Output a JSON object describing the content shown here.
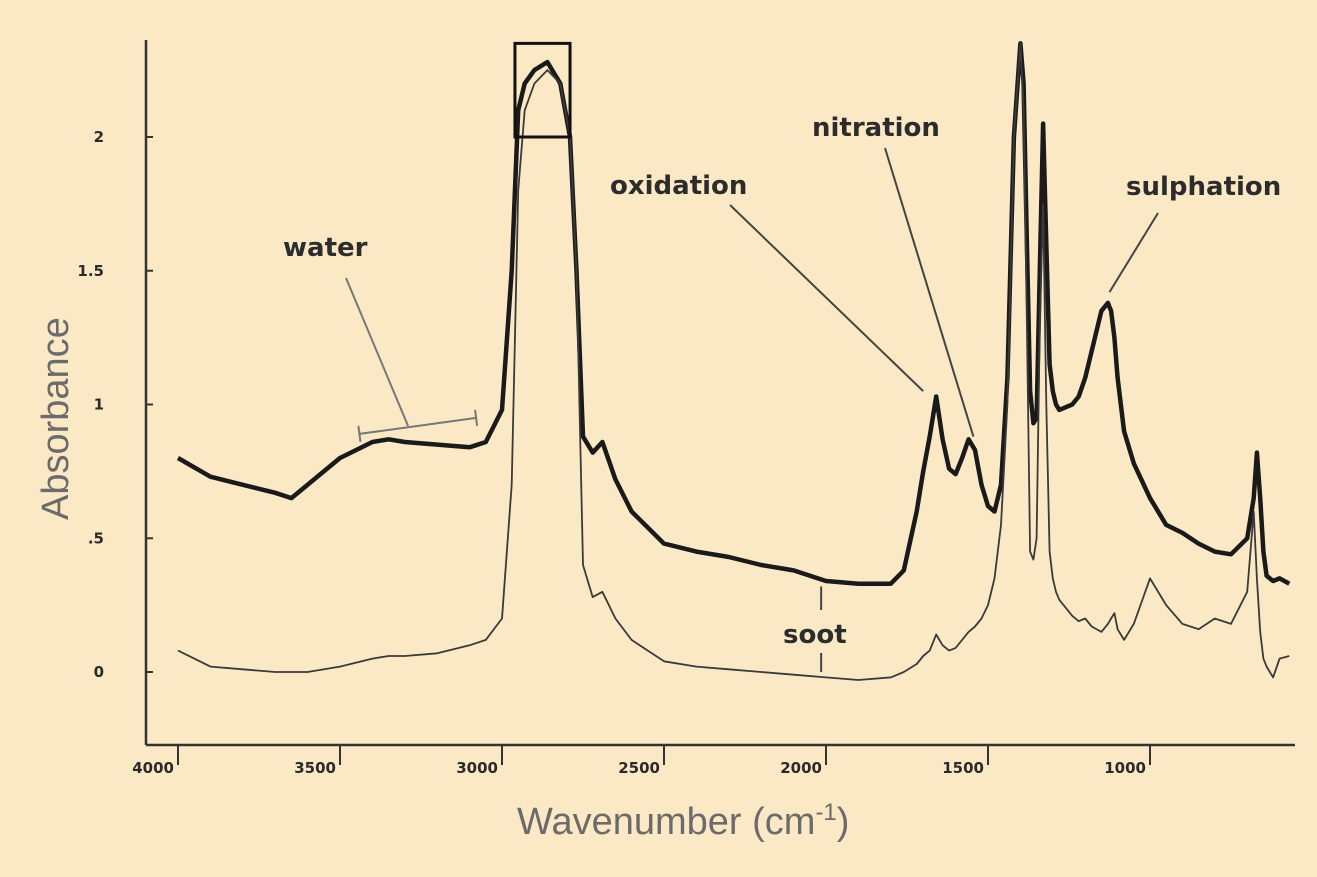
{
  "chart_data": {
    "type": "line",
    "title": "",
    "xlabel": "Wavenumber (cm",
    "xlabel_sup": "-1",
    "xlabel_close": ")",
    "ylabel": "Absorbance",
    "xlim": [
      4000,
      570
    ],
    "ylim": [
      -0.27,
      2.35
    ],
    "x_reversed": true,
    "grid": false,
    "x_ticks": [
      {
        "value": 4000,
        "label": "4000"
      },
      {
        "value": 3500,
        "label": "3500"
      },
      {
        "value": 3000,
        "label": "3000"
      },
      {
        "value": 2500,
        "label": "2500"
      },
      {
        "value": 2000,
        "label": "2000"
      },
      {
        "value": 1500,
        "label": "1500"
      },
      {
        "value": 1000,
        "label": "1000"
      }
    ],
    "y_ticks": [
      {
        "value": 0,
        "label": "0"
      },
      {
        "value": 0.5,
        "label": ".5"
      },
      {
        "value": 1,
        "label": "1"
      },
      {
        "value": 1.5,
        "label": "1.5"
      },
      {
        "value": 2,
        "label": "2"
      }
    ],
    "series": [
      {
        "style": "thick",
        "x": [
          4000,
          3900,
          3800,
          3700,
          3650,
          3600,
          3500,
          3400,
          3350,
          3300,
          3200,
          3100,
          3050,
          3000,
          2970,
          2950,
          2930,
          2900,
          2860,
          2820,
          2790,
          2770,
          2750,
          2720,
          2690,
          2650,
          2600,
          2500,
          2400,
          2300,
          2200,
          2100,
          2000,
          1900,
          1800,
          1760,
          1720,
          1700,
          1680,
          1660,
          1640,
          1620,
          1600,
          1580,
          1560,
          1540,
          1520,
          1500,
          1480,
          1460,
          1440,
          1420,
          1400,
          1390,
          1380,
          1370,
          1360,
          1350,
          1340,
          1330,
          1320,
          1310,
          1300,
          1290,
          1280,
          1260,
          1240,
          1220,
          1200,
          1180,
          1150,
          1130,
          1120,
          1110,
          1100,
          1080,
          1050,
          1000,
          950,
          900,
          850,
          800,
          750,
          700,
          680,
          670,
          660,
          650,
          640,
          620,
          600,
          570
        ],
        "y": [
          0.8,
          0.73,
          0.7,
          0.67,
          0.65,
          0.7,
          0.8,
          0.86,
          0.87,
          0.86,
          0.85,
          0.84,
          0.86,
          0.98,
          1.5,
          2.1,
          2.2,
          2.25,
          2.28,
          2.2,
          2.0,
          1.5,
          0.88,
          0.82,
          0.86,
          0.72,
          0.6,
          0.48,
          0.45,
          0.43,
          0.4,
          0.38,
          0.34,
          0.33,
          0.33,
          0.38,
          0.6,
          0.75,
          0.88,
          1.03,
          0.87,
          0.76,
          0.74,
          0.8,
          0.87,
          0.83,
          0.7,
          0.62,
          0.6,
          0.7,
          1.1,
          2.0,
          2.35,
          2.2,
          1.6,
          1.05,
          0.93,
          0.95,
          1.5,
          2.05,
          1.6,
          1.15,
          1.05,
          1.0,
          0.98,
          0.99,
          1.0,
          1.03,
          1.1,
          1.2,
          1.35,
          1.38,
          1.35,
          1.25,
          1.1,
          0.9,
          0.78,
          0.65,
          0.55,
          0.52,
          0.48,
          0.45,
          0.44,
          0.5,
          0.65,
          0.82,
          0.65,
          0.45,
          0.36,
          0.34,
          0.35,
          0.33
        ]
      },
      {
        "style": "thin",
        "x": [
          4000,
          3950,
          3900,
          3800,
          3700,
          3600,
          3500,
          3400,
          3350,
          3300,
          3200,
          3100,
          3050,
          3000,
          2970,
          2950,
          2930,
          2900,
          2860,
          2820,
          2790,
          2770,
          2750,
          2720,
          2690,
          2650,
          2600,
          2500,
          2400,
          2300,
          2200,
          2100,
          2000,
          1900,
          1800,
          1760,
          1720,
          1700,
          1680,
          1660,
          1640,
          1620,
          1600,
          1580,
          1560,
          1540,
          1520,
          1500,
          1480,
          1460,
          1440,
          1420,
          1400,
          1390,
          1380,
          1370,
          1360,
          1350,
          1340,
          1330,
          1320,
          1310,
          1300,
          1290,
          1280,
          1260,
          1240,
          1220,
          1200,
          1180,
          1150,
          1130,
          1120,
          1110,
          1100,
          1080,
          1050,
          1000,
          950,
          900,
          850,
          800,
          750,
          700,
          680,
          670,
          660,
          650,
          640,
          620,
          600,
          570
        ],
        "y": [
          0.08,
          0.05,
          0.02,
          0.01,
          0.0,
          0.0,
          0.02,
          0.05,
          0.06,
          0.06,
          0.07,
          0.1,
          0.12,
          0.2,
          0.7,
          1.8,
          2.1,
          2.2,
          2.25,
          2.2,
          2.0,
          1.5,
          0.4,
          0.28,
          0.3,
          0.2,
          0.12,
          0.04,
          0.02,
          0.01,
          0.0,
          -0.01,
          -0.02,
          -0.03,
          -0.02,
          0.0,
          0.03,
          0.06,
          0.08,
          0.14,
          0.1,
          0.08,
          0.09,
          0.12,
          0.15,
          0.17,
          0.2,
          0.25,
          0.35,
          0.55,
          1.0,
          2.0,
          2.35,
          2.1,
          1.3,
          0.45,
          0.42,
          0.5,
          1.3,
          1.75,
          1.0,
          0.45,
          0.35,
          0.3,
          0.27,
          0.24,
          0.21,
          0.19,
          0.2,
          0.17,
          0.15,
          0.18,
          0.2,
          0.22,
          0.16,
          0.12,
          0.18,
          0.35,
          0.25,
          0.18,
          0.16,
          0.2,
          0.18,
          0.3,
          0.6,
          0.35,
          0.15,
          0.05,
          0.02,
          -0.02,
          0.05,
          0.06
        ]
      }
    ],
    "annotations": [
      {
        "text": "water",
        "target": [
          3300,
          0.9
        ]
      },
      {
        "text": "oxidation",
        "target": [
          1675,
          1.03
        ]
      },
      {
        "text": "nitration",
        "target": [
          1545,
          0.87
        ]
      },
      {
        "text": "sulphation",
        "target": [
          1115,
          1.38
        ]
      },
      {
        "text": "soot",
        "target": [
          2000,
          0.03
        ]
      }
    ]
  }
}
